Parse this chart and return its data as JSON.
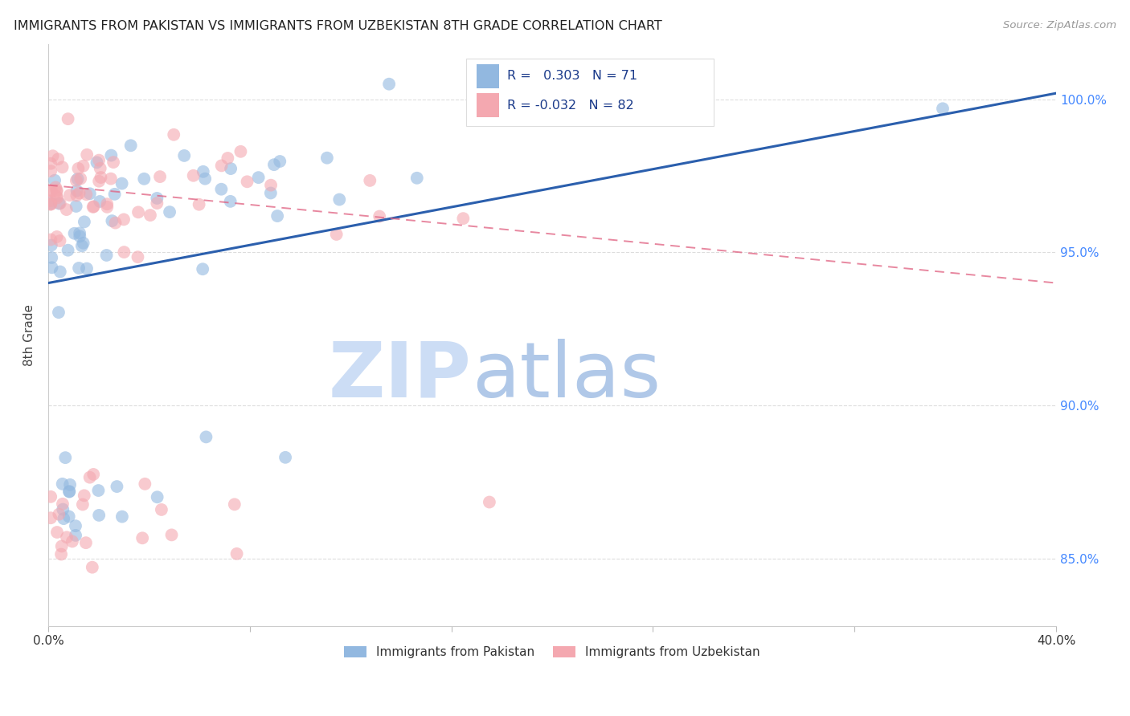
{
  "title": "IMMIGRANTS FROM PAKISTAN VS IMMIGRANTS FROM UZBEKISTAN 8TH GRADE CORRELATION CHART",
  "source": "Source: ZipAtlas.com",
  "ylabel": "8th Grade",
  "xlim": [
    0.0,
    0.4
  ],
  "ylim": [
    0.828,
    1.018
  ],
  "pakistan_R": 0.303,
  "pakistan_N": 71,
  "uzbekistan_R": -0.032,
  "uzbekistan_N": 82,
  "pakistan_color": "#92b8e0",
  "uzbekistan_color": "#f4a8b0",
  "pakistan_line_color": "#2b5fad",
  "uzbekistan_line_color": "#e06080",
  "watermark_zip": "ZIP",
  "watermark_atlas": "atlas",
  "watermark_color_zip": "#ccddf5",
  "watermark_color_atlas": "#b8cfe8",
  "background_color": "#ffffff",
  "legend_blue_text_color": "#1a3a8a",
  "legend_pink_text_color": "#cc3366",
  "ytick_color": "#4488ff",
  "xtick_color": "#333333",
  "grid_color": "#dddddd",
  "pk_line_y0": 0.94,
  "pk_line_y1": 1.002,
  "uz_line_y0": 0.972,
  "uz_line_y1": 0.94
}
